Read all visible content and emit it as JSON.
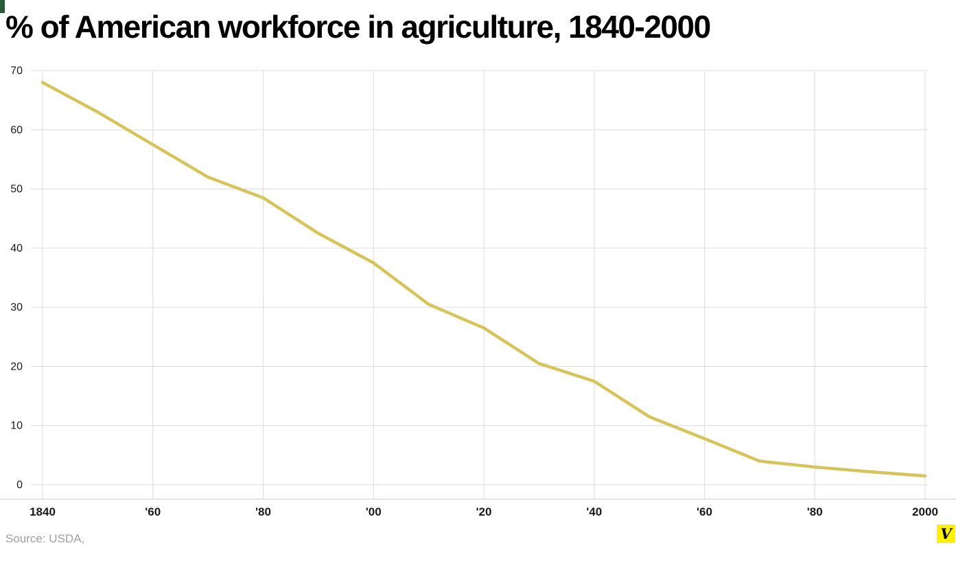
{
  "page": {
    "title": "% of American workforce in agriculture, 1840-2000",
    "source": "Source: USDA,",
    "logo_letter": "V"
  },
  "colors": {
    "line": "#d8c35b",
    "grid": "#dcdcdc",
    "axis": "#c9c9c9",
    "tick_text": "#1a1a1a",
    "title_text": "#000000",
    "source_text": "#9e9e9e",
    "logo_bg": "#fff200",
    "corner_mark": "#265c38"
  },
  "chart_data": {
    "type": "line",
    "title": "% of American workforce in agriculture, 1840-2000",
    "xlabel": "",
    "ylabel": "",
    "grid": true,
    "legend": "none",
    "xlim": [
      1840,
      2000
    ],
    "ylim": [
      0,
      70
    ],
    "yticks": [
      0,
      10,
      20,
      30,
      40,
      50,
      60,
      70
    ],
    "xticks": [
      1840,
      1860,
      1880,
      1900,
      1920,
      1940,
      1960,
      1980,
      2000
    ],
    "xtick_labels": [
      "1840",
      "'60",
      "'80",
      "'00",
      "'20",
      "'40",
      "'60",
      "'80",
      "2000"
    ],
    "x": [
      1840,
      1850,
      1860,
      1870,
      1880,
      1890,
      1900,
      1910,
      1920,
      1930,
      1940,
      1950,
      1960,
      1970,
      1980,
      1990,
      2000
    ],
    "values": [
      68,
      63,
      57.5,
      52,
      48.5,
      42.5,
      37.5,
      30.5,
      26.5,
      20.5,
      17.5,
      11.5,
      7.8,
      4,
      3,
      2.2,
      1.5
    ],
    "series_name": "% of American workforce in agriculture"
  }
}
